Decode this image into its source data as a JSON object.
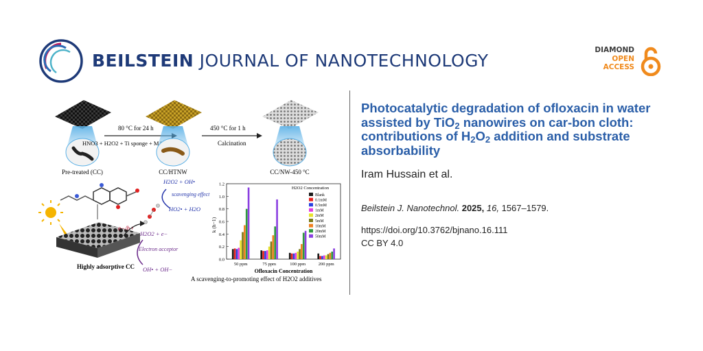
{
  "header": {
    "journal_bold": "BEILSTEIN",
    "journal_rest": " JOURNAL OF NANOTECHNOLOGY",
    "open_access": [
      "DIAMOND",
      "OPEN",
      "ACCESS"
    ]
  },
  "article": {
    "title_parts": [
      "Photocatalytic degradation of ofloxacin in water assisted by TiO",
      "2",
      " nanowires on car-bon cloth: contributions of H",
      "2",
      "O",
      "2",
      " addition and substrate absorbability"
    ],
    "authors": "Iram Hussain et al.",
    "journal_abbrev": "Beilstein J. Nanotechnol.",
    "year": "2025,",
    "volume": "16,",
    "pages": "1567–1579.",
    "doi": "https://doi.org/10.3762/bjnano.16.111",
    "license": "CC BY 4.0"
  },
  "figure": {
    "step1_top": "80 °C for 24 h",
    "step1_bottom": "HNO3 + H2O2 + Ti sponge + MA",
    "step2_top": "450 °C for 1 h",
    "step2_bottom": "Calcination",
    "label_cc": "Pre-treated (CC)",
    "label_htnw": "CC/HTNW",
    "label_nw": "CC/NW-450 °C",
    "scheme_h2o2_oh": "H2O2 + OH•",
    "scheme_scavenging": "scavenging effect",
    "scheme_ho2": "HO2• + H2O",
    "scheme_eh": "e−/h+",
    "scheme_h2o2_e": "H2O2 + e−",
    "scheme_acceptor": "Electron acceptor",
    "scheme_oh": "OH• + OH−",
    "scheme_cc": "Highly adsorptive CC",
    "caption": "A scavenging-to-promoting effect of H2O2 additives"
  },
  "chart_data": {
    "type": "bar",
    "legend_title": "H2O2 Concentration",
    "legend_position": "top-right",
    "xlabel": "Ofloxacin Concentration",
    "ylabel": "k (h−1)",
    "ylim": [
      0,
      1.2
    ],
    "yticks": [
      "0.0",
      "0.2",
      "0.4",
      "0.6",
      "0.8",
      "1.0",
      "1.2"
    ],
    "categories": [
      "50 ppm",
      "75 ppm",
      "100 ppm",
      "200 ppm"
    ],
    "series": [
      {
        "name": "Blank",
        "color": "#1a1a1a",
        "values": [
          0.16,
          0.14,
          0.1,
          0.09
        ]
      },
      {
        "name": "0.1mM",
        "color": "#e8211f",
        "values": [
          0.17,
          0.13,
          0.09,
          0.05
        ]
      },
      {
        "name": "0.5mM",
        "color": "#2a3fe0",
        "values": [
          0.16,
          0.13,
          0.09,
          0.05
        ]
      },
      {
        "name": "1mM",
        "color": "#e23be0",
        "values": [
          0.18,
          0.14,
          0.1,
          0.06
        ]
      },
      {
        "name": "2mM",
        "color": "#e8e22a",
        "values": [
          0.3,
          0.2,
          0.12,
          0.06
        ]
      },
      {
        "name": "5mM",
        "color": "#7a7a18",
        "values": [
          0.43,
          0.28,
          0.16,
          0.08
        ]
      },
      {
        "name": "10mM",
        "color": "#f07f1e",
        "values": [
          0.54,
          0.38,
          0.24,
          0.1
        ]
      },
      {
        "name": "20mM",
        "color": "#2f9a3c",
        "values": [
          0.8,
          0.52,
          0.42,
          0.12
        ]
      },
      {
        "name": "50mM",
        "color": "#8a3fe0",
        "values": [
          1.14,
          0.95,
          0.45,
          0.17
        ]
      }
    ]
  }
}
